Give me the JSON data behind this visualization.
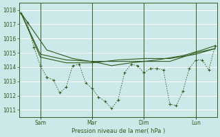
{
  "background_color": "#cde8e8",
  "grid_color": "#b8d8d8",
  "line_color": "#2d5a1b",
  "title": "Pression niveau de la mer( hPa )",
  "ylim": [
    1010.5,
    1018.5
  ],
  "yticks": [
    1011,
    1012,
    1013,
    1014,
    1015,
    1016,
    1017,
    1018
  ],
  "day_labels": [
    "Sam",
    "Mar",
    "Dim",
    "Lun"
  ],
  "jagged_x": [
    0,
    1,
    2,
    3,
    4,
    5,
    6,
    7,
    8,
    9,
    10,
    11,
    12,
    13,
    14,
    15,
    16,
    17,
    18,
    19,
    20,
    21,
    22,
    23,
    24,
    25,
    26,
    27,
    28,
    29,
    30
  ],
  "jagged_y": [
    1017.8,
    1017.1,
    1015.4,
    1014.1,
    1013.3,
    1013.1,
    1012.2,
    1012.6,
    1014.1,
    1014.2,
    1012.9,
    1012.5,
    1011.9,
    1011.6,
    1011.1,
    1011.7,
    1013.6,
    1014.2,
    1014.1,
    1013.6,
    1013.9,
    1013.9,
    1013.8,
    1011.4,
    1011.3,
    1012.3,
    1013.9,
    1014.5,
    1014.5,
    1013.8,
    1015.5
  ],
  "smooth1_x": [
    0,
    4,
    8,
    12,
    14,
    17,
    21,
    25,
    28,
    30
  ],
  "smooth1_y": [
    1017.8,
    1015.2,
    1014.6,
    1014.3,
    1014.1,
    1014.3,
    1014.5,
    1014.8,
    1015.2,
    1015.5
  ],
  "smooth2_x": [
    0,
    3,
    7,
    11,
    15,
    19,
    23,
    27,
    30
  ],
  "smooth2_y": [
    1017.8,
    1014.9,
    1014.5,
    1014.4,
    1014.4,
    1014.4,
    1014.4,
    1015.0,
    1015.3
  ],
  "smooth3_x": [
    0,
    3,
    7,
    11,
    15,
    19,
    23,
    27,
    30
  ],
  "smooth3_y": [
    1017.8,
    1014.7,
    1014.3,
    1014.3,
    1014.5,
    1014.6,
    1014.6,
    1014.9,
    1015.3
  ],
  "vline_x": [
    3,
    11,
    19,
    27
  ],
  "xlim": [
    -0.3,
    30.3
  ],
  "xtick_pos": [
    3,
    11,
    19,
    27
  ]
}
